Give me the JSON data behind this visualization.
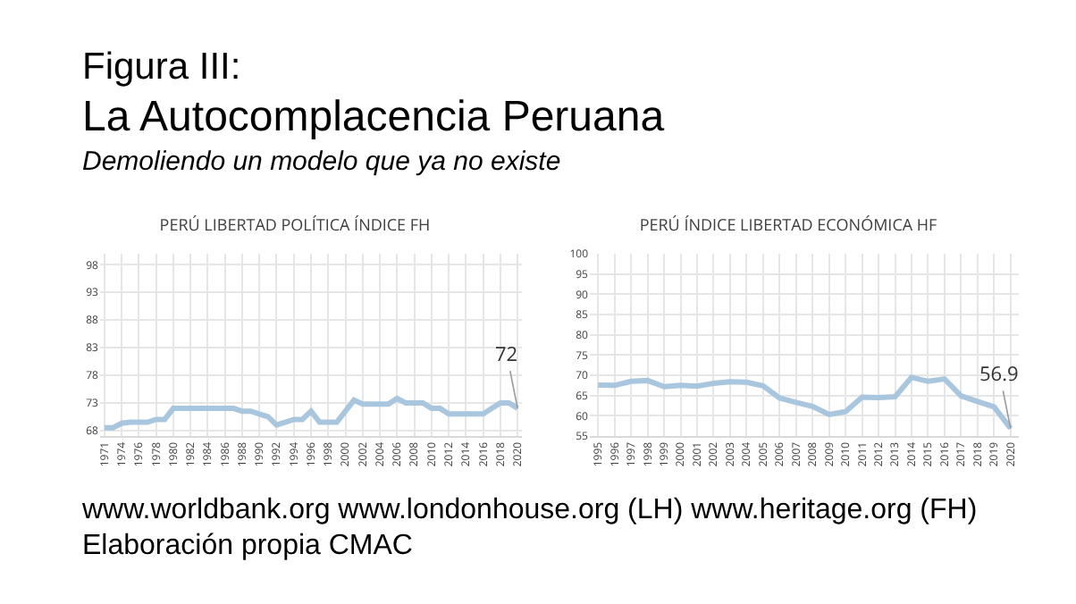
{
  "chart_data": [
    {
      "type": "line",
      "title": "PERÚ LIBERTAD POLÍTICA ÍNDICE FH",
      "annotations": [
        "Figura III:",
        "La Autocomplacencia Peruana",
        "Demoliendo un modelo que ya no existe",
        "www.worldbank.org www.londonhouse.org (LH) www.heritage.org (FH)",
        "Elaboración propia CMAC",
        {
          "text": "72",
          "x": "2020",
          "y": 72
        }
      ],
      "categories": [
        "1971",
        null,
        "1974",
        null,
        "1976",
        null,
        "1978",
        null,
        "1980",
        null,
        "1982",
        null,
        "1984",
        null,
        "1986",
        null,
        "1988",
        null,
        "1990",
        null,
        "1992",
        null,
        "1994",
        null,
        "1996",
        null,
        "1998",
        null,
        "2000",
        null,
        "2002",
        null,
        "2004",
        null,
        "2006",
        null,
        "2008",
        null,
        "2010",
        null,
        "2012",
        null,
        "2014",
        null,
        "2016",
        null,
        "2018",
        null,
        "2020"
      ],
      "series": [
        {
          "color": "#a9c6df",
          "values": [
            68.5,
            68.5,
            69.3,
            69.5,
            69.5,
            69.5,
            70,
            70,
            72,
            72,
            72,
            72,
            72,
            72,
            72,
            72,
            71.5,
            71.5,
            71,
            70.5,
            69,
            69.5,
            70,
            70,
            71.5,
            69.5,
            69.5,
            69.5,
            71.5,
            73.5,
            72.8,
            72.8,
            72.8,
            72.8,
            73.8,
            73,
            73,
            73,
            72,
            72,
            71,
            71,
            71,
            71,
            71,
            72,
            73,
            73,
            72
          ]
        }
      ],
      "ylim": [
        67,
        100
      ],
      "yticks": [
        68,
        73,
        78,
        83,
        88,
        93,
        98
      ],
      "grid": true,
      "marker": "none",
      "line_style": "solid"
    },
    {
      "type": "line",
      "title": "PERÚ ÍNDICE LIBERTAD ECONÓMICA HF",
      "annotations": [
        {
          "text": "56.9",
          "x": "2020",
          "y": 56.9
        }
      ],
      "categories": [
        "1995",
        "1996",
        "1997",
        "1998",
        "1999",
        "2000",
        "2001",
        "2002",
        "2003",
        "2004",
        "2005",
        "2006",
        "2007",
        "2008",
        "2009",
        "2010",
        "2011",
        "2012",
        "2013",
        "2014",
        "2015",
        "2016",
        "2017",
        "2018",
        "2019",
        "2020"
      ],
      "series": [
        {
          "color": "#a9c6df",
          "values": [
            67.6,
            67.5,
            68.5,
            68.7,
            67.2,
            67.5,
            67.3,
            68,
            68.4,
            68.3,
            67.4,
            64.4,
            63.3,
            62.3,
            60.3,
            61,
            64.6,
            64.5,
            64.7,
            69.5,
            68.5,
            69.1,
            64.9,
            63.5,
            62.2,
            56.9
          ]
        }
      ],
      "ylim": [
        55,
        100
      ],
      "yticks": [
        55,
        60,
        65,
        70,
        75,
        80,
        85,
        90,
        95,
        100
      ],
      "grid": true,
      "marker": "none",
      "line_style": "solid"
    }
  ]
}
